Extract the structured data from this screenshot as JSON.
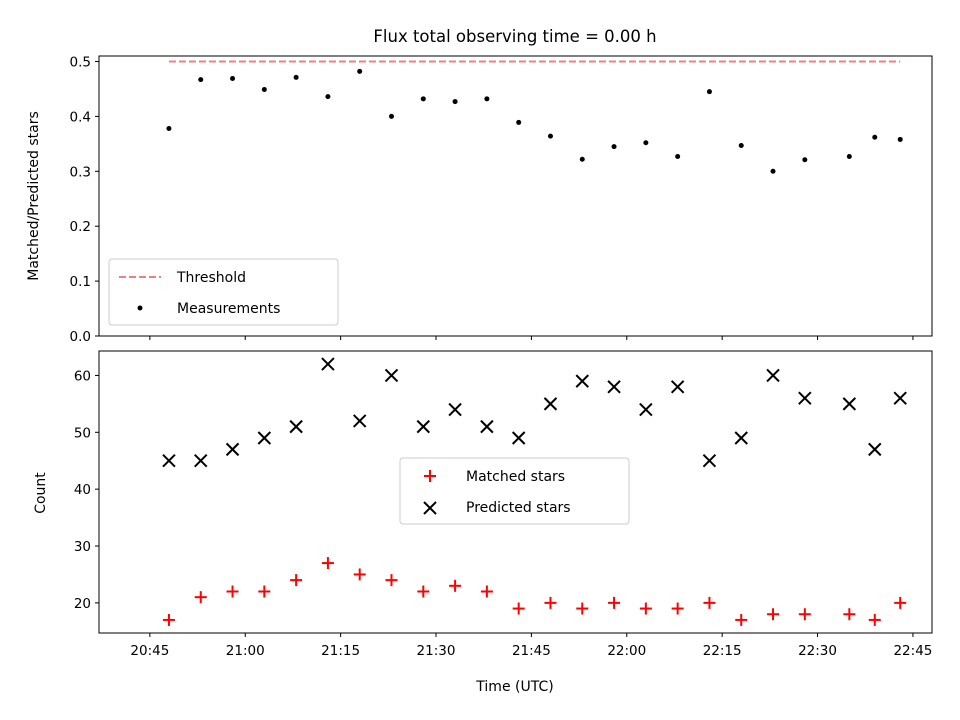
{
  "chart_data": [
    {
      "type": "scatter",
      "title": "Flux total observing time = 0.00 h",
      "xlabel": "",
      "ylabel": "Matched/Predicted stars",
      "ylim": [
        0,
        0.51
      ],
      "yticks": [
        "0.0",
        "0.1",
        "0.2",
        "0.3",
        "0.4",
        "0.5"
      ],
      "grid": false,
      "legend_position": "lower-left",
      "series": [
        {
          "name": "Threshold",
          "kind": "dashed-line",
          "color": "#f08080",
          "x": [
            "20:48",
            "22:43"
          ],
          "y": [
            0.5,
            0.5
          ]
        },
        {
          "name": "Measurements",
          "kind": "points",
          "color": "#000000",
          "x": [
            "20:48",
            "20:53",
            "20:58",
            "21:03",
            "21:08",
            "21:13",
            "21:18",
            "21:23",
            "21:28",
            "21:33",
            "21:38",
            "21:43",
            "21:48",
            "21:53",
            "21:58",
            "22:03",
            "22:08",
            "22:13",
            "22:18",
            "22:23",
            "22:28",
            "22:35",
            "22:39",
            "22:43"
          ],
          "y": [
            0.378,
            0.467,
            0.469,
            0.449,
            0.471,
            0.436,
            0.482,
            0.4,
            0.432,
            0.427,
            0.432,
            0.389,
            0.364,
            0.322,
            0.345,
            0.352,
            0.327,
            0.445,
            0.347,
            0.3,
            0.321,
            0.327,
            0.362,
            0.358
          ]
        }
      ]
    },
    {
      "type": "scatter",
      "title": "",
      "xlabel": "Time (UTC)",
      "ylabel": "Count",
      "ylim": [
        14.7,
        64.3
      ],
      "yticks": [
        "20",
        "30",
        "40",
        "50",
        "60"
      ],
      "xticks": [
        "20:45",
        "21:00",
        "21:15",
        "21:30",
        "21:45",
        "22:00",
        "22:15",
        "22:30",
        "22:45"
      ],
      "grid": false,
      "legend_position": "center",
      "series": [
        {
          "name": "Matched stars",
          "marker": "plus",
          "color": "#ff0000",
          "x": [
            "20:48",
            "20:53",
            "20:58",
            "21:03",
            "21:08",
            "21:13",
            "21:18",
            "21:23",
            "21:28",
            "21:33",
            "21:38",
            "21:43",
            "21:48",
            "21:53",
            "21:58",
            "22:03",
            "22:08",
            "22:13",
            "22:18",
            "22:23",
            "22:28",
            "22:35",
            "22:39",
            "22:43"
          ],
          "y": [
            17,
            21,
            22,
            22,
            24,
            27,
            25,
            24,
            22,
            23,
            22,
            19,
            20,
            19,
            20,
            19,
            19,
            20,
            17,
            18,
            18,
            18,
            17,
            20
          ]
        },
        {
          "name": "Predicted stars",
          "marker": "x",
          "color": "#000000",
          "x": [
            "20:48",
            "20:53",
            "20:58",
            "21:03",
            "21:08",
            "21:13",
            "21:18",
            "21:23",
            "21:28",
            "21:33",
            "21:38",
            "21:43",
            "21:48",
            "21:53",
            "21:58",
            "22:03",
            "22:08",
            "22:13",
            "22:18",
            "22:23",
            "22:28",
            "22:35",
            "22:39",
            "22:43"
          ],
          "y": [
            45,
            45,
            47,
            49,
            51,
            62,
            52,
            60,
            51,
            54,
            51,
            49,
            55,
            59,
            58,
            54,
            58,
            45,
            49,
            60,
            56,
            55,
            47,
            56
          ]
        }
      ]
    }
  ]
}
